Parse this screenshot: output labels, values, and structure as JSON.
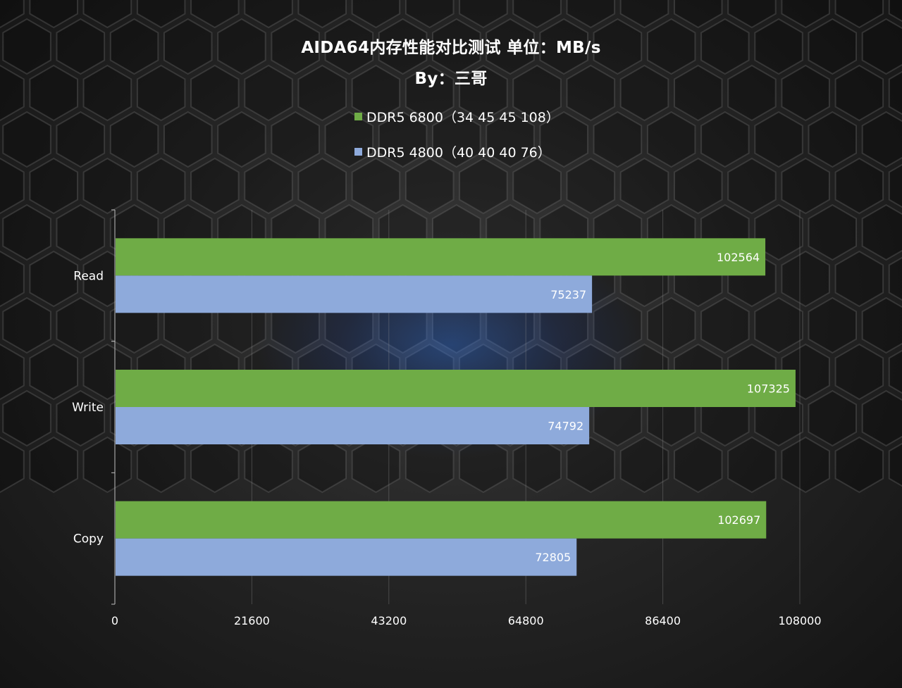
{
  "title": "AIDA64内存性能对比测试 单位：MB/s",
  "subtitle": "By：三哥",
  "chart_data": {
    "type": "bar",
    "orientation": "horizontal",
    "categories": [
      "Read",
      "Write",
      "Copy"
    ],
    "series": [
      {
        "name": "DDR5 6800（34 45 45 108）",
        "color": "#6fac46",
        "values": [
          102564,
          107325,
          102697
        ]
      },
      {
        "name": "DDR5 4800（40 40 40 76）",
        "color": "#8eaadb",
        "values": [
          75237,
          74792,
          72805
        ]
      }
    ],
    "xlim": [
      0,
      108000
    ],
    "xticks": [
      "0",
      "21600",
      "43200",
      "64800",
      "86400",
      "108000"
    ],
    "grid": true,
    "legend_position": "top",
    "data_labels": true
  }
}
